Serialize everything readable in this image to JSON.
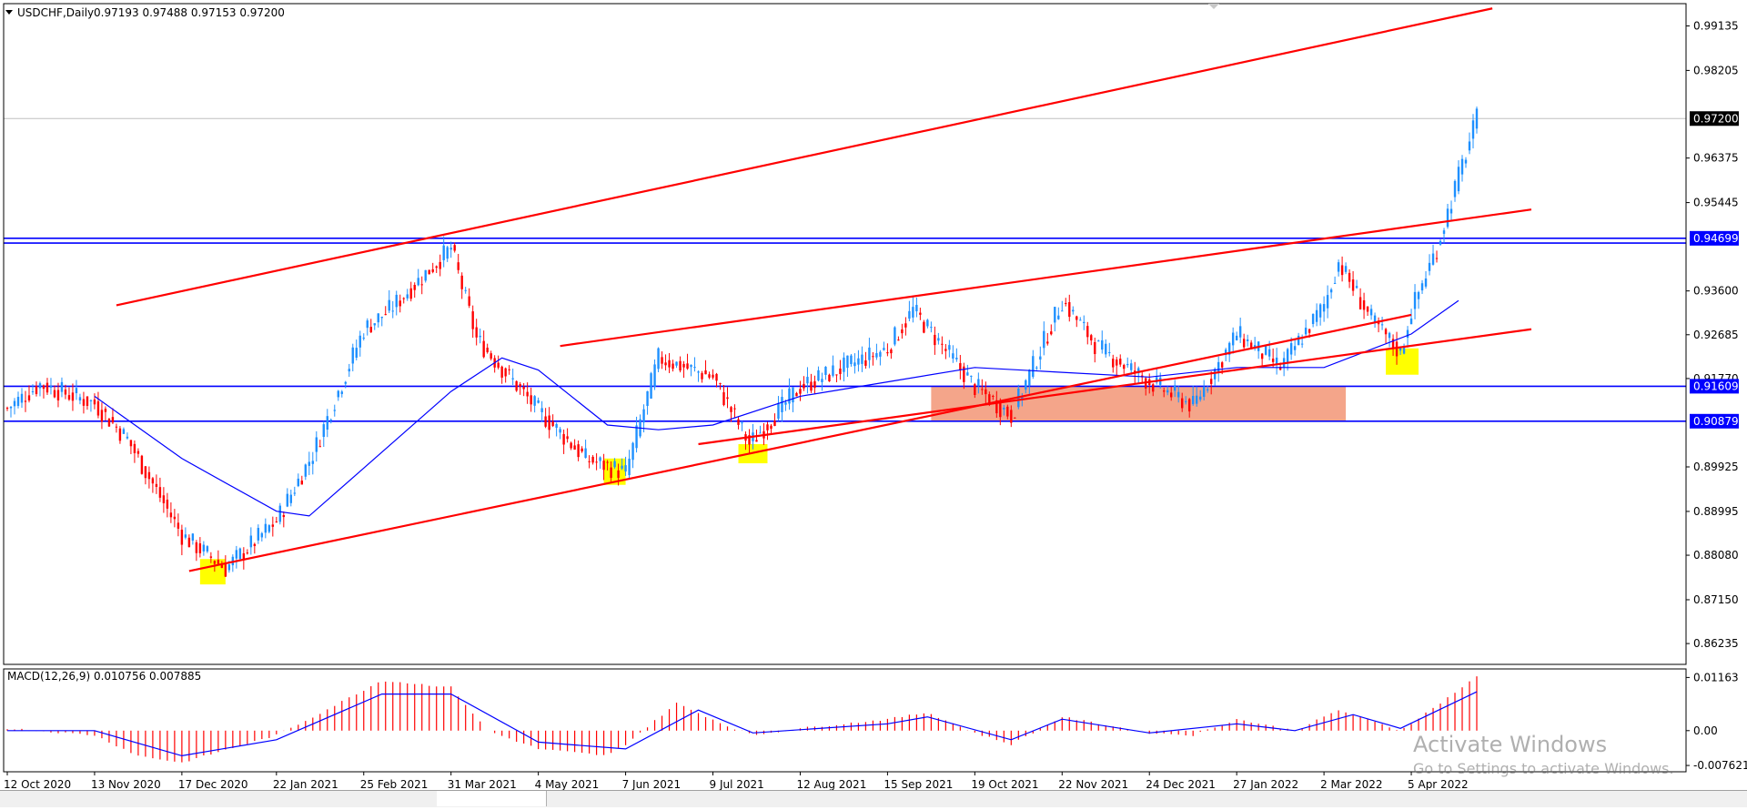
{
  "colors": {
    "channel": "#ff0000",
    "level": "#0000ff",
    "ma": "#0000ff",
    "bull_candle": "#1e90ff",
    "bear_candle": "#ff0000",
    "zone": "#f4a58a",
    "highlight": "#ffff00",
    "macd_hist": "#ff0000",
    "macd_signal": "#0000ff"
  },
  "header": {
    "symbol_tf": "USDCHF,Daily",
    "ohlc": "0.97193 0.97488 0.97153 0.97200"
  },
  "macd_label": "MACD(12,26,9) 0.010756 0.007885",
  "watermark": {
    "line1": "Activate Windows",
    "line2": "Go to Settings to activate Windows."
  },
  "chart_data": [
    {
      "type": "candlestick",
      "title": "USDCHF, Daily",
      "ylim": [
        0.858,
        0.996
      ],
      "y_ticks": [
        "0.99135",
        "0.98205",
        "0.96375",
        "0.95445",
        "0.93600",
        "0.92685",
        "0.91770",
        "0.89925",
        "0.88995",
        "0.88080",
        "0.87150",
        "0.86235"
      ],
      "x_labels": [
        "12 Oct 2020",
        "13 Nov 2020",
        "17 Dec 2020",
        "22 Jan 2021",
        "25 Feb 2021",
        "31 Mar 2021",
        "4 May 2021",
        "7 Jun 2021",
        "9 Jul 2021",
        "12 Aug 2021",
        "15 Sep 2021",
        "19 Oct 2021",
        "22 Nov 2021",
        "24 Dec 2021",
        "27 Jan 2022",
        "2 Mar 2022",
        "5 Apr 2022"
      ],
      "anchors": [
        {
          "date": "12 Oct 2020",
          "price": 0.9115
        },
        {
          "date": "23 Oct 2020",
          "price": 0.9165
        },
        {
          "date": "13 Nov 2020",
          "price": 0.9125
        },
        {
          "date": "26 Nov 2020",
          "price": 0.905
        },
        {
          "date": "17 Dec 2020",
          "price": 0.885
        },
        {
          "date": "4 Jan 2021",
          "price": 0.878
        },
        {
          "date": "22 Jan 2021",
          "price": 0.888
        },
        {
          "date": "5 Feb 2021",
          "price": 0.902
        },
        {
          "date": "25 Feb 2021",
          "price": 0.928
        },
        {
          "date": "8 Mar 2021",
          "price": 0.932
        },
        {
          "date": "31 Mar 2021",
          "price": 0.945
        },
        {
          "date": "9 Apr 2021",
          "price": 0.926
        },
        {
          "date": "4 May 2021",
          "price": 0.911
        },
        {
          "date": "21 May 2021",
          "price": 0.901
        },
        {
          "date": "7 Jun 2021",
          "price": 0.898
        },
        {
          "date": "18 Jun 2021",
          "price": 0.922
        },
        {
          "date": "9 Jul 2021",
          "price": 0.918
        },
        {
          "date": "23 Jul 2021",
          "price": 0.904
        },
        {
          "date": "12 Aug 2021",
          "price": 0.916
        },
        {
          "date": "15 Sep 2021",
          "price": 0.924
        },
        {
          "date": "24 Sep 2021",
          "price": 0.932
        },
        {
          "date": "19 Oct 2021",
          "price": 0.916
        },
        {
          "date": "2 Nov 2021",
          "price": 0.91
        },
        {
          "date": "22 Nov 2021",
          "price": 0.934
        },
        {
          "date": "6 Dec 2021",
          "price": 0.924
        },
        {
          "date": "24 Dec 2021",
          "price": 0.917
        },
        {
          "date": "11 Jan 2022",
          "price": 0.912
        },
        {
          "date": "27 Jan 2022",
          "price": 0.927
        },
        {
          "date": "14 Feb 2022",
          "price": 0.92
        },
        {
          "date": "2 Mar 2022",
          "price": 0.933
        },
        {
          "date": "8 Mar 2022",
          "price": 0.942
        },
        {
          "date": "21 Mar 2022",
          "price": 0.93
        },
        {
          "date": "31 Mar 2022",
          "price": 0.923
        },
        {
          "date": "5 Apr 2022",
          "price": 0.932
        },
        {
          "date": "14 Apr 2022",
          "price": 0.945
        },
        {
          "date": "22 Apr 2022",
          "price": 0.96
        },
        {
          "date": "29 Apr 2022",
          "price": 0.972
        }
      ],
      "current_price": {
        "value": 0.972,
        "label": "0.97200"
      },
      "horizontal_levels": [
        {
          "value": 0.94699,
          "label": "0.94699"
        },
        {
          "value": 0.946,
          "label": ""
        },
        {
          "value": 0.91609,
          "label": "0.91609"
        },
        {
          "value": 0.90879,
          "label": "0.90879"
        }
      ],
      "moving_average": [
        {
          "date": "13 Nov 2020",
          "price": 0.914
        },
        {
          "date": "17 Dec 2020",
          "price": 0.901
        },
        {
          "date": "22 Jan 2021",
          "price": 0.89
        },
        {
          "date": "4 Feb 2021",
          "price": 0.889
        },
        {
          "date": "25 Feb 2021",
          "price": 0.899
        },
        {
          "date": "31 Mar 2021",
          "price": 0.915
        },
        {
          "date": "20 Apr 2021",
          "price": 0.922
        },
        {
          "date": "4 May 2021",
          "price": 0.9195
        },
        {
          "date": "31 May 2021",
          "price": 0.908
        },
        {
          "date": "18 Jun 2021",
          "price": 0.907
        },
        {
          "date": "9 Jul 2021",
          "price": 0.908
        },
        {
          "date": "12 Aug 2021",
          "price": 0.914
        },
        {
          "date": "15 Sep 2021",
          "price": 0.917
        },
        {
          "date": "19 Oct 2021",
          "price": 0.92
        },
        {
          "date": "22 Nov 2021",
          "price": 0.919
        },
        {
          "date": "24 Dec 2021",
          "price": 0.918
        },
        {
          "date": "27 Jan 2022",
          "price": 0.92
        },
        {
          "date": "2 Mar 2022",
          "price": 0.92
        },
        {
          "date": "5 Apr 2022",
          "price": 0.927
        },
        {
          "date": "22 Apr 2022",
          "price": 0.934
        }
      ],
      "trend_lines": [
        {
          "from": {
            "date": "20 Dec 2020",
            "price": 0.8775
          },
          "to": {
            "date": "5 Apr 2022",
            "price": 0.931
          }
        },
        {
          "from": {
            "date": "22 Nov 2020",
            "price": 0.933
          },
          "to": {
            "date": "5 May 2022",
            "price": 0.995
          }
        },
        {
          "from": {
            "date": "12 May 2021",
            "price": 0.9245
          },
          "to": {
            "date": "20 May 2022",
            "price": 0.953
          }
        },
        {
          "from": {
            "date": "3 Jul 2021",
            "price": 0.904
          },
          "to": {
            "date": "20 May 2022",
            "price": 0.928
          }
        }
      ],
      "zones": [
        {
          "from": "1 Oct 2021",
          "to": "10 Mar 2022",
          "high": 0.91609,
          "low": 0.90879
        }
      ],
      "highlights": [
        {
          "from": "24 Dec 2020",
          "to": "4 Jan 2021",
          "high": 0.88,
          "low": 0.8747
        },
        {
          "from": "28 May 2021",
          "to": "7 Jun 2021",
          "high": 0.901,
          "low": 0.8955
        },
        {
          "from": "20 Jul 2021",
          "to": "30 Jul 2021",
          "high": 0.904,
          "low": 0.9
        },
        {
          "from": "25 Mar 2022",
          "to": "7 Apr 2022",
          "high": 0.924,
          "low": 0.9185
        }
      ]
    },
    {
      "type": "bar",
      "title": "MACD(12,26,9) 0.010756 0.007885",
      "ylim": [
        -0.009,
        0.0135
      ],
      "y_ticks": [
        "0.01163",
        "0.00",
        "-0.007621"
      ],
      "histogram_anchors": [
        {
          "date": "12 Oct 2020",
          "value": 0.0005
        },
        {
          "date": "13 Nov 2020",
          "value": -0.001
        },
        {
          "date": "1 Dec 2020",
          "value": -0.0055
        },
        {
          "date": "17 Dec 2020",
          "value": -0.007
        },
        {
          "date": "22 Jan 2021",
          "value": -0.001
        },
        {
          "date": "5 Feb 2021",
          "value": 0.003
        },
        {
          "date": "4 Mar 2021",
          "value": 0.011
        },
        {
          "date": "31 Mar 2021",
          "value": 0.0095
        },
        {
          "date": "14 Apr 2021",
          "value": 0.0
        },
        {
          "date": "4 May 2021",
          "value": -0.004
        },
        {
          "date": "31 May 2021",
          "value": -0.0055
        },
        {
          "date": "7 Jun 2021",
          "value": -0.003
        },
        {
          "date": "25 Jun 2021",
          "value": 0.006
        },
        {
          "date": "15 Jul 2021",
          "value": 0.001
        },
        {
          "date": "26 Jul 2021",
          "value": -0.001
        },
        {
          "date": "12 Aug 2021",
          "value": 0.0005
        },
        {
          "date": "15 Sep 2021",
          "value": 0.0025
        },
        {
          "date": "30 Sep 2021",
          "value": 0.004
        },
        {
          "date": "19 Oct 2021",
          "value": -0.0005
        },
        {
          "date": "2 Nov 2021",
          "value": -0.003
        },
        {
          "date": "22 Nov 2021",
          "value": 0.003
        },
        {
          "date": "24 Dec 2021",
          "value": -0.0005
        },
        {
          "date": "11 Jan 2022",
          "value": -0.001
        },
        {
          "date": "27 Jan 2022",
          "value": 0.0025
        },
        {
          "date": "18 Feb 2022",
          "value": 0.0
        },
        {
          "date": "8 Mar 2022",
          "value": 0.0045
        },
        {
          "date": "31 Mar 2022",
          "value": 0.0
        },
        {
          "date": "14 Apr 2022",
          "value": 0.0055
        },
        {
          "date": "29 Apr 2022",
          "value": 0.0118
        }
      ],
      "signal_anchors": [
        {
          "date": "12 Oct 2020",
          "value": 0.0
        },
        {
          "date": "13 Nov 2020",
          "value": 0.0
        },
        {
          "date": "17 Dec 2020",
          "value": -0.0055
        },
        {
          "date": "22 Jan 2021",
          "value": -0.002
        },
        {
          "date": "4 Mar 2021",
          "value": 0.008
        },
        {
          "date": "31 Mar 2021",
          "value": 0.008
        },
        {
          "date": "4 May 2021",
          "value": -0.0025
        },
        {
          "date": "7 Jun 2021",
          "value": -0.004
        },
        {
          "date": "3 Jul 2021",
          "value": 0.0045
        },
        {
          "date": "26 Jul 2021",
          "value": -0.0005
        },
        {
          "date": "15 Sep 2021",
          "value": 0.0015
        },
        {
          "date": "30 Sep 2021",
          "value": 0.003
        },
        {
          "date": "2 Nov 2021",
          "value": -0.002
        },
        {
          "date": "22 Nov 2021",
          "value": 0.0025
        },
        {
          "date": "24 Dec 2021",
          "value": -0.0005
        },
        {
          "date": "27 Jan 2022",
          "value": 0.0015
        },
        {
          "date": "18 Feb 2022",
          "value": 0.0
        },
        {
          "date": "14 Mar 2022",
          "value": 0.0035
        },
        {
          "date": "31 Mar 2022",
          "value": 0.0005
        },
        {
          "date": "29 Apr 2022",
          "value": 0.0085
        }
      ]
    }
  ]
}
